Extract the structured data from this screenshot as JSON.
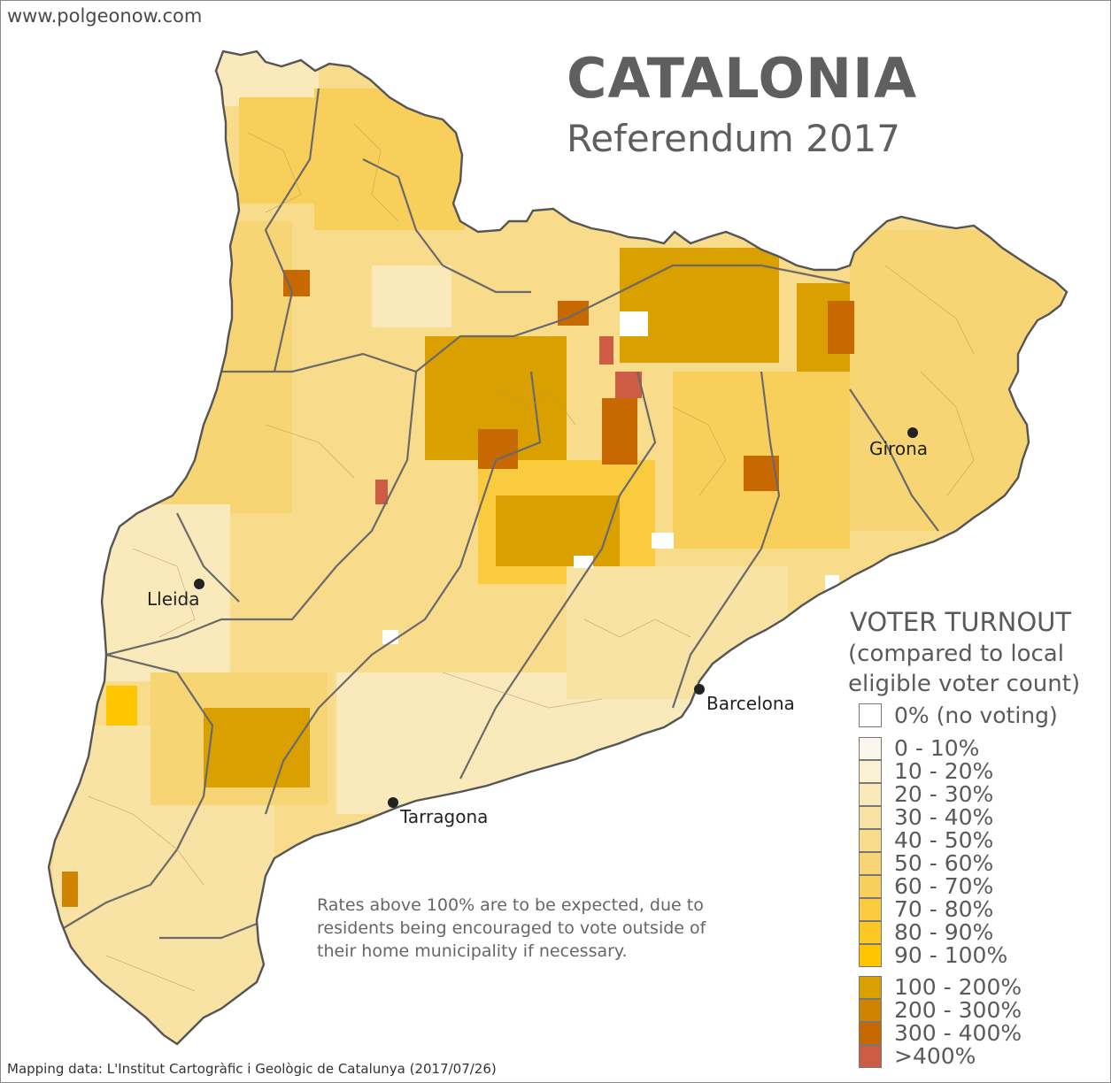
{
  "site": "www.polgeonow.com",
  "title": "CATALONIA",
  "subtitle": "Referendum 2017",
  "cities": [
    {
      "name": "Girona",
      "label": "Girona"
    },
    {
      "name": "Lleida",
      "label": "Lleida"
    },
    {
      "name": "Barcelona",
      "label": "Barcelona"
    },
    {
      "name": "Tarragona",
      "label": "Tarragona"
    }
  ],
  "legend": {
    "title": "VOTER TURNOUT",
    "subtitle_line1": "(compared to local",
    "subtitle_line2": "eligible voter count)",
    "zero": {
      "label": "0% (no voting)",
      "color": "#ffffff"
    },
    "bins": [
      {
        "label": "0 - 10%",
        "color": "#fbf7ec"
      },
      {
        "label": "10 - 20%",
        "color": "#faf0d2"
      },
      {
        "label": "20 - 30%",
        "color": "#f9e9bb"
      },
      {
        "label": "30 - 40%",
        "color": "#f8e2a4"
      },
      {
        "label": "40 - 50%",
        "color": "#f8dc8c"
      },
      {
        "label": "50 - 60%",
        "color": "#f8d574"
      },
      {
        "label": "60 - 70%",
        "color": "#f9cf5b"
      },
      {
        "label": "70 - 80%",
        "color": "#fbcb3f"
      },
      {
        "label": "80 - 90%",
        "color": "#fdc823"
      },
      {
        "label": "90 - 100%",
        "color": "#ffc600"
      }
    ],
    "high_bins": [
      {
        "label": "100 - 200%",
        "color": "#d9a000"
      },
      {
        "label": "200 - 300%",
        "color": "#d08300"
      },
      {
        "label": "300 - 400%",
        "color": "#c86800"
      },
      {
        "label": ">400%",
        "color": "#cc5c44"
      }
    ]
  },
  "note": "Rates above 100% are to be expected, due to residents being encouraged to vote outside of their home municipality if necessary.",
  "credit": "Mapping data: L'Institut Cartogràfic i Geològic de Catalunya (2017/07/26)"
}
